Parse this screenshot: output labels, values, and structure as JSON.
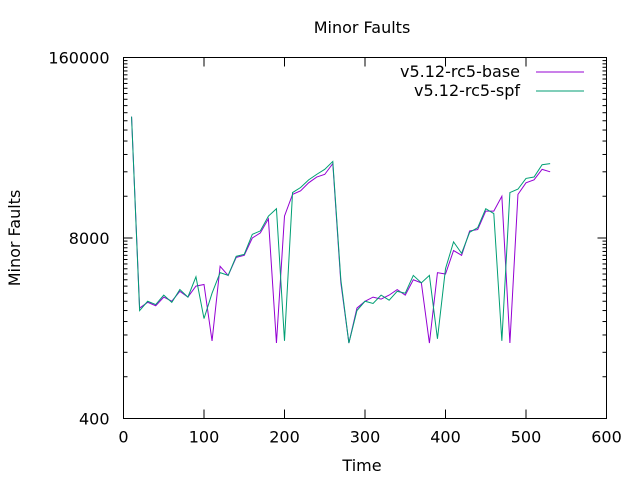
{
  "chart_data": {
    "type": "line",
    "title": "Minor Faults",
    "xlabel": "Time",
    "ylabel": "Minor Faults",
    "xlim": [
      0,
      600
    ],
    "ylim": [
      400,
      160000
    ],
    "yscale": "log",
    "xticks": [
      0,
      100,
      200,
      300,
      400,
      500,
      600
    ],
    "yticks": [
      400,
      8000,
      160000
    ],
    "grid": false,
    "legend_position": "top-right",
    "series": [
      {
        "name": "v5.12-rc5-base",
        "color": "#9400d3",
        "points": [
          [
            10,
            60000
          ],
          [
            20,
            2500
          ],
          [
            30,
            2750
          ],
          [
            40,
            2600
          ],
          [
            50,
            3000
          ],
          [
            60,
            2800
          ],
          [
            70,
            3300
          ],
          [
            80,
            3000
          ],
          [
            90,
            3600
          ],
          [
            100,
            3700
          ],
          [
            110,
            1450
          ],
          [
            120,
            5000
          ],
          [
            130,
            4300
          ],
          [
            140,
            5800
          ],
          [
            150,
            6000
          ],
          [
            160,
            8000
          ],
          [
            170,
            8700
          ],
          [
            180,
            11000
          ],
          [
            190,
            1400
          ],
          [
            200,
            11500
          ],
          [
            210,
            16500
          ],
          [
            220,
            17500
          ],
          [
            230,
            20000
          ],
          [
            240,
            22000
          ],
          [
            250,
            23000
          ],
          [
            260,
            27500
          ],
          [
            270,
            3800
          ],
          [
            280,
            1400
          ],
          [
            290,
            2500
          ],
          [
            300,
            2800
          ],
          [
            310,
            3000
          ],
          [
            320,
            2900
          ],
          [
            330,
            3100
          ],
          [
            340,
            3400
          ],
          [
            350,
            3100
          ],
          [
            360,
            4000
          ],
          [
            370,
            3800
          ],
          [
            380,
            1400
          ],
          [
            390,
            4500
          ],
          [
            400,
            4400
          ],
          [
            410,
            6500
          ],
          [
            420,
            6000
          ],
          [
            430,
            9000
          ],
          [
            440,
            9200
          ],
          [
            450,
            12500
          ],
          [
            460,
            12500
          ],
          [
            470,
            16000
          ],
          [
            480,
            1400
          ],
          [
            490,
            16500
          ],
          [
            500,
            20000
          ],
          [
            510,
            21000
          ],
          [
            520,
            25000
          ],
          [
            530,
            24000
          ]
        ]
      },
      {
        "name": "v5.12-rc5-spf",
        "color": "#009e73",
        "points": [
          [
            10,
            60000
          ],
          [
            20,
            2400
          ],
          [
            30,
            2800
          ],
          [
            40,
            2650
          ],
          [
            50,
            3100
          ],
          [
            60,
            2750
          ],
          [
            70,
            3400
          ],
          [
            80,
            3000
          ],
          [
            90,
            4200
          ],
          [
            100,
            2100
          ],
          [
            110,
            3200
          ],
          [
            120,
            4500
          ],
          [
            130,
            4300
          ],
          [
            140,
            5900
          ],
          [
            150,
            6100
          ],
          [
            160,
            8500
          ],
          [
            170,
            9000
          ],
          [
            180,
            11500
          ],
          [
            190,
            13000
          ],
          [
            200,
            1450
          ],
          [
            210,
            17000
          ],
          [
            220,
            18500
          ],
          [
            230,
            21000
          ],
          [
            240,
            23000
          ],
          [
            250,
            25000
          ],
          [
            260,
            28500
          ],
          [
            270,
            4000
          ],
          [
            280,
            1400
          ],
          [
            290,
            2400
          ],
          [
            300,
            2800
          ],
          [
            310,
            2700
          ],
          [
            320,
            3100
          ],
          [
            330,
            2850
          ],
          [
            340,
            3300
          ],
          [
            350,
            3200
          ],
          [
            360,
            4300
          ],
          [
            370,
            3800
          ],
          [
            380,
            4300
          ],
          [
            390,
            1500
          ],
          [
            400,
            4800
          ],
          [
            410,
            7500
          ],
          [
            420,
            6200
          ],
          [
            430,
            8800
          ],
          [
            440,
            9500
          ],
          [
            450,
            13000
          ],
          [
            460,
            12000
          ],
          [
            470,
            1450
          ],
          [
            480,
            17000
          ],
          [
            490,
            18000
          ],
          [
            500,
            21500
          ],
          [
            510,
            22000
          ],
          [
            520,
            27000
          ],
          [
            530,
            27500
          ]
        ]
      }
    ]
  }
}
